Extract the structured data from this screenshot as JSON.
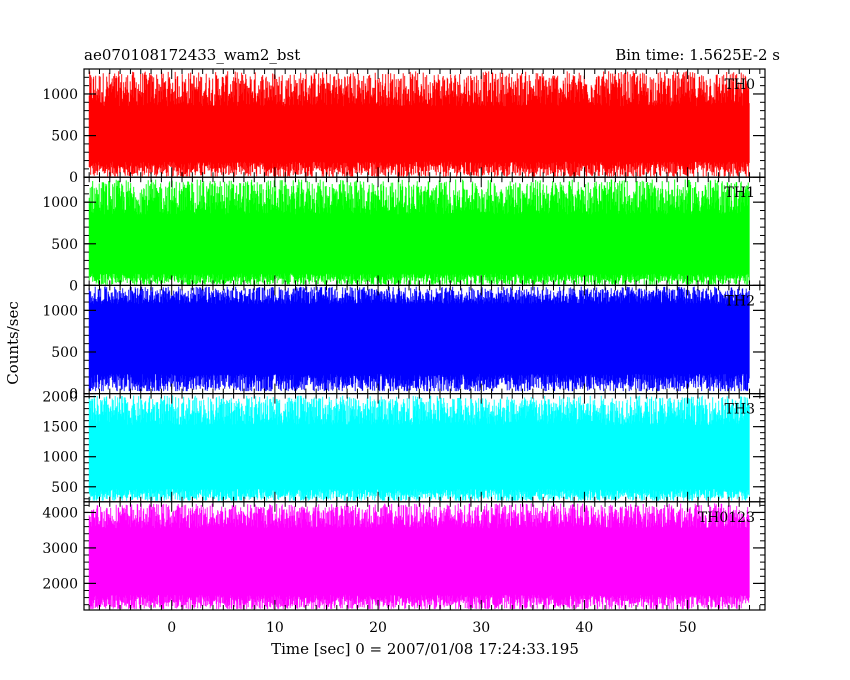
{
  "header": {
    "left_title": "ae070108172433_wam2_bst",
    "right_title": "Bin time: 1.5625E-2 s"
  },
  "chart_data": {
    "type": "line",
    "xlabel": "Time [sec] 0 = 2007/01/08 17:24:33.195",
    "ylabel": "Counts/sec",
    "xlim": [
      -8.5,
      57.5
    ],
    "data_x_range": [
      -8,
      56
    ],
    "x_ticks": [
      0,
      10,
      20,
      30,
      40,
      50
    ],
    "bin_time_s": 0.015625,
    "panels": [
      {
        "name": "TH0",
        "color": "#ff0000",
        "ylim": [
          0,
          1300
        ],
        "y_ticks": [
          0,
          500,
          1000
        ],
        "typical": {
          "mean": 540,
          "low": 130,
          "high": 1000,
          "min": 10,
          "max": 1300
        }
      },
      {
        "name": "TH1",
        "color": "#00ff00",
        "ylim": [
          0,
          1300
        ],
        "y_ticks": [
          0,
          500,
          1000
        ],
        "typical": {
          "mean": 560,
          "low": 100,
          "high": 1000,
          "min": 10,
          "max": 1300
        }
      },
      {
        "name": "TH2",
        "color": "#0000ff",
        "ylim": [
          0,
          1300
        ],
        "y_ticks": [
          0,
          500,
          1000
        ],
        "typical": {
          "mean": 640,
          "low": 170,
          "high": 1150,
          "min": 30,
          "max": 1300
        }
      },
      {
        "name": "TH3",
        "color": "#00ffff",
        "ylim": [
          250,
          2050
        ],
        "y_ticks": [
          500,
          1000,
          1500,
          2000
        ],
        "typical": {
          "mean": 1050,
          "low": 400,
          "high": 1700,
          "min": 270,
          "max": 2050
        }
      },
      {
        "name": "TH0123",
        "color": "#ff00ff",
        "ylim": [
          1250,
          4300
        ],
        "y_ticks": [
          2000,
          3000,
          4000
        ],
        "typical": {
          "mean": 2750,
          "low": 1550,
          "high": 3800,
          "min": 1280,
          "max": 4300
        }
      }
    ]
  }
}
